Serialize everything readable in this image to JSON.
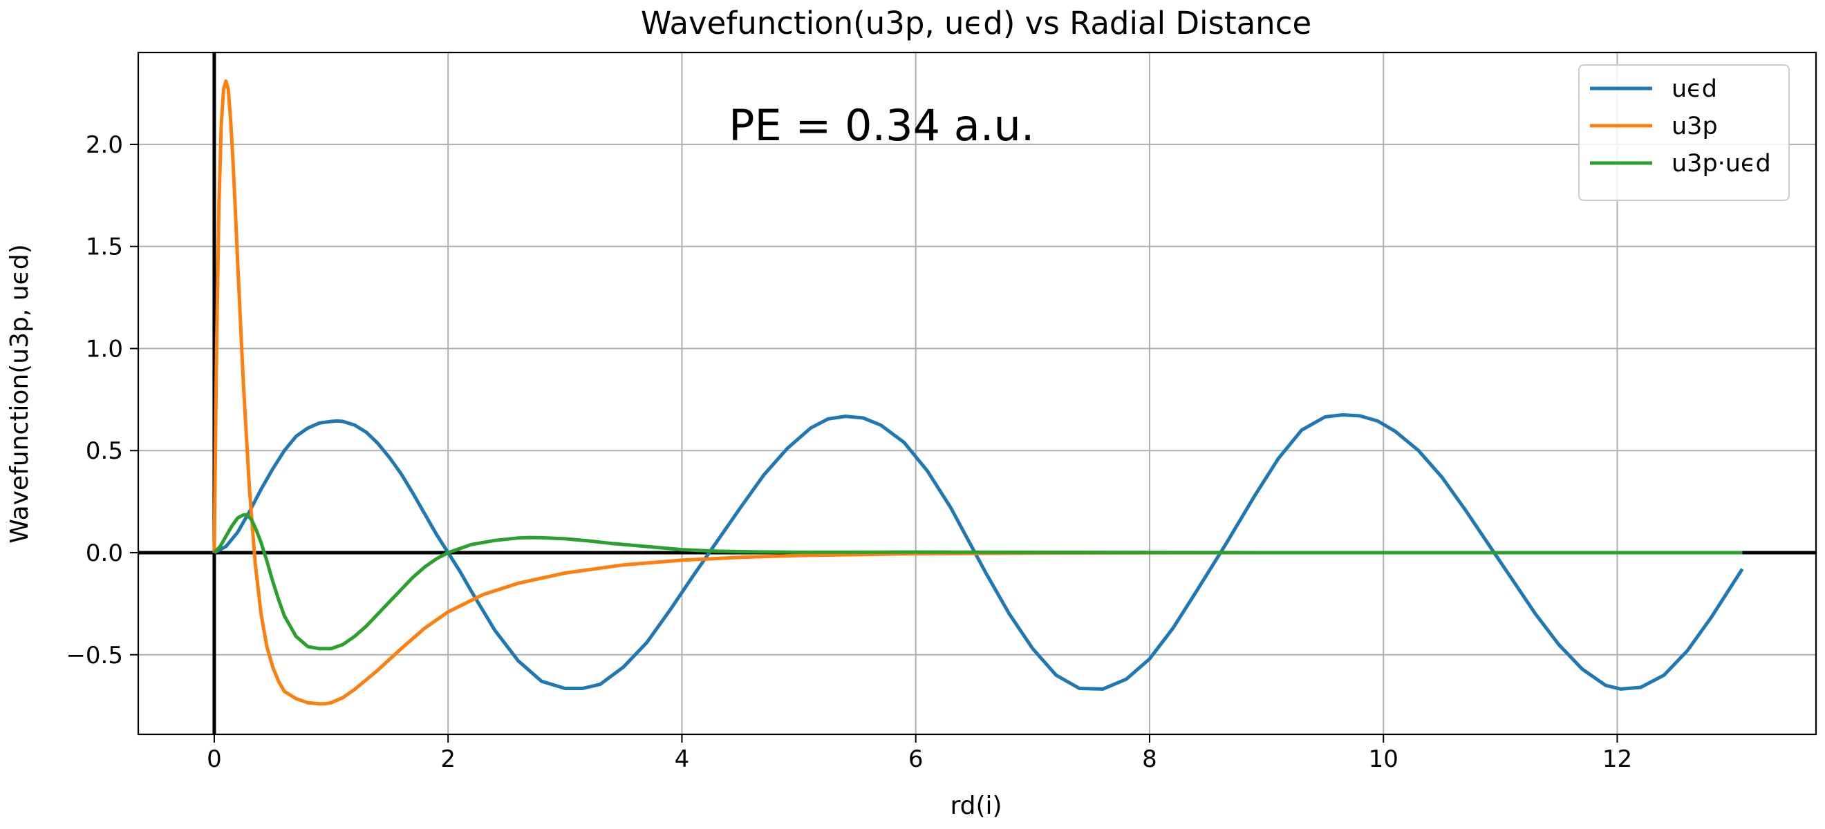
{
  "chart_data": {
    "type": "line",
    "title": "Wavefunction(u3p, uϵd) vs Radial Distance",
    "xlabel": "rd(i)",
    "ylabel": "Wavefunction(u3p, uϵd)",
    "xlim": [
      -0.65,
      13.7
    ],
    "ylim": [
      -0.89,
      2.45
    ],
    "xticks": [
      0,
      2,
      4,
      6,
      8,
      10,
      12
    ],
    "xtick_labels": [
      "0",
      "2",
      "4",
      "6",
      "8",
      "10",
      "12"
    ],
    "yticks": [
      -0.5,
      0.0,
      0.5,
      1.0,
      1.5,
      2.0
    ],
    "ytick_labels": [
      "−0.5",
      "0.0",
      "0.5",
      "1.0",
      "1.5",
      "2.0"
    ],
    "grid": true,
    "legend_position": "top-right",
    "annotation": {
      "text": "PE = 0.34 a.u.",
      "x": 4.4,
      "y": 2.02
    },
    "reference_lines": [
      {
        "axis": "horizontal",
        "value": 0
      },
      {
        "axis": "vertical",
        "value": 0
      }
    ],
    "series": [
      {
        "name": "uϵd",
        "color": "#1f77b4",
        "x": [
          0,
          0.1,
          0.2,
          0.3,
          0.4,
          0.5,
          0.6,
          0.7,
          0.8,
          0.9,
          1.0,
          1.05,
          1.1,
          1.2,
          1.3,
          1.4,
          1.5,
          1.6,
          1.7,
          1.8,
          1.9,
          2.0,
          2.1,
          2.2,
          2.4,
          2.6,
          2.8,
          3.0,
          3.15,
          3.3,
          3.5,
          3.7,
          3.9,
          4.1,
          4.27,
          4.5,
          4.7,
          4.9,
          5.1,
          5.25,
          5.4,
          5.55,
          5.7,
          5.9,
          6.1,
          6.3,
          6.45,
          6.6,
          6.8,
          7.0,
          7.2,
          7.4,
          7.6,
          7.8,
          8.0,
          8.2,
          8.4,
          8.65,
          8.9,
          9.1,
          9.3,
          9.5,
          9.65,
          9.8,
          9.95,
          10.1,
          10.3,
          10.5,
          10.7,
          10.9,
          11.1,
          11.3,
          11.5,
          11.7,
          11.9,
          12.03,
          12.2,
          12.4,
          12.6,
          12.8,
          13.07
        ],
        "y": [
          0.0,
          0.03,
          0.1,
          0.2,
          0.31,
          0.41,
          0.5,
          0.57,
          0.61,
          0.635,
          0.643,
          0.645,
          0.643,
          0.625,
          0.59,
          0.535,
          0.465,
          0.385,
          0.29,
          0.19,
          0.09,
          0.0,
          -0.09,
          -0.19,
          -0.38,
          -0.53,
          -0.63,
          -0.665,
          -0.665,
          -0.645,
          -0.56,
          -0.44,
          -0.28,
          -0.11,
          0.03,
          0.22,
          0.38,
          0.51,
          0.61,
          0.655,
          0.668,
          0.66,
          0.625,
          0.54,
          0.4,
          0.22,
          0.06,
          -0.1,
          -0.3,
          -0.47,
          -0.6,
          -0.665,
          -0.668,
          -0.62,
          -0.52,
          -0.37,
          -0.19,
          0.04,
          0.28,
          0.46,
          0.6,
          0.665,
          0.675,
          0.67,
          0.645,
          0.595,
          0.5,
          0.37,
          0.21,
          0.04,
          -0.13,
          -0.3,
          -0.45,
          -0.57,
          -0.65,
          -0.668,
          -0.66,
          -0.6,
          -0.48,
          -0.32,
          -0.08
        ]
      },
      {
        "name": "u3p",
        "color": "#ff7f0e",
        "x": [
          0,
          0.02,
          0.04,
          0.06,
          0.08,
          0.1,
          0.12,
          0.14,
          0.16,
          0.18,
          0.2,
          0.25,
          0.3,
          0.35,
          0.4,
          0.45,
          0.5,
          0.55,
          0.6,
          0.7,
          0.8,
          0.9,
          0.95,
          1.0,
          1.1,
          1.2,
          1.4,
          1.6,
          1.8,
          2.0,
          2.3,
          2.6,
          3.0,
          3.5,
          4.0,
          4.5,
          5.0,
          6.0,
          7.0,
          8.0,
          9.0,
          10.0,
          11.0,
          12.0,
          13.07
        ],
        "y": [
          0.0,
          1.0,
          1.7,
          2.1,
          2.27,
          2.31,
          2.27,
          2.12,
          1.92,
          1.68,
          1.42,
          0.82,
          0.32,
          -0.05,
          -0.3,
          -0.46,
          -0.56,
          -0.63,
          -0.68,
          -0.715,
          -0.735,
          -0.74,
          -0.74,
          -0.735,
          -0.71,
          -0.67,
          -0.575,
          -0.47,
          -0.37,
          -0.29,
          -0.205,
          -0.15,
          -0.1,
          -0.06,
          -0.037,
          -0.023,
          -0.014,
          -0.005,
          -0.002,
          -0.001,
          0.0,
          0.0,
          0.0,
          0.0,
          0.0
        ]
      },
      {
        "name": "u3p·uϵd",
        "color": "#2ca02c",
        "x": [
          0,
          0.05,
          0.1,
          0.15,
          0.2,
          0.25,
          0.28,
          0.32,
          0.36,
          0.4,
          0.45,
          0.5,
          0.55,
          0.6,
          0.7,
          0.8,
          0.9,
          1.0,
          1.1,
          1.2,
          1.3,
          1.4,
          1.5,
          1.6,
          1.7,
          1.8,
          1.9,
          2.0,
          2.1,
          2.2,
          2.4,
          2.6,
          2.7,
          2.8,
          3.0,
          3.2,
          3.4,
          3.7,
          4.0,
          4.3,
          4.6,
          5.0,
          6.0,
          7.0,
          8.0,
          9.0,
          10.0,
          11.0,
          12.0,
          13.07
        ],
        "y": [
          0.0,
          0.03,
          0.08,
          0.13,
          0.17,
          0.185,
          0.185,
          0.16,
          0.11,
          0.05,
          -0.04,
          -0.14,
          -0.23,
          -0.31,
          -0.41,
          -0.46,
          -0.47,
          -0.47,
          -0.45,
          -0.41,
          -0.36,
          -0.3,
          -0.24,
          -0.18,
          -0.12,
          -0.07,
          -0.03,
          -0.0,
          0.02,
          0.04,
          0.06,
          0.072,
          0.074,
          0.073,
          0.068,
          0.058,
          0.045,
          0.03,
          0.015,
          0.007,
          0.004,
          0.002,
          0.003,
          0.002,
          0.001,
          0.0,
          0.0,
          0.0,
          0.0,
          0.0
        ]
      }
    ]
  }
}
